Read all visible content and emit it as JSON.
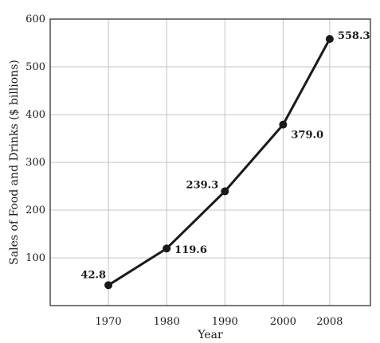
{
  "chart_data": {
    "type": "line",
    "x": [
      1970,
      1980,
      1990,
      2000,
      2008
    ],
    "values": [
      42.8,
      119.6,
      239.3,
      379.0,
      558.3
    ],
    "data_labels": [
      "42.8",
      "119.6",
      "239.3",
      "379.0",
      "558.3"
    ],
    "x_tick_labels": [
      "1970",
      "1980",
      "1990",
      "2000",
      "2008"
    ],
    "y_ticks": [
      100,
      200,
      300,
      400,
      500,
      600
    ],
    "xlabel": "Year",
    "ylabel": "Sales of Food and Drinks ($ billions)",
    "xlim": [
      1960,
      2015
    ],
    "ylim": [
      0,
      600
    ],
    "grid": true,
    "line_color": "#1a1a1a",
    "grid_color": "#c4c4c4"
  }
}
